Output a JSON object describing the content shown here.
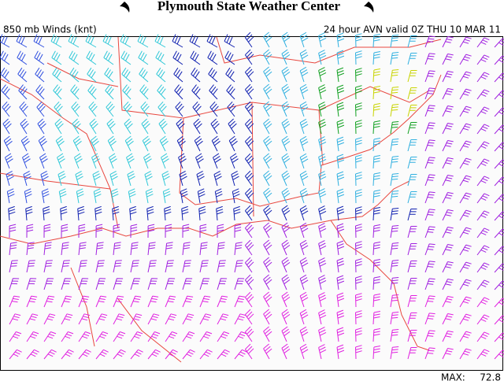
{
  "header": {
    "title": "Plymouth State Weather Center"
  },
  "map": {
    "field_label": "850 mb Winds (knt)",
    "valid_label": "24 hour AVN valid 0Z THU 10 MAR 11"
  },
  "footer": {
    "max_label": "MAX:",
    "max_value": 72.8
  }
}
